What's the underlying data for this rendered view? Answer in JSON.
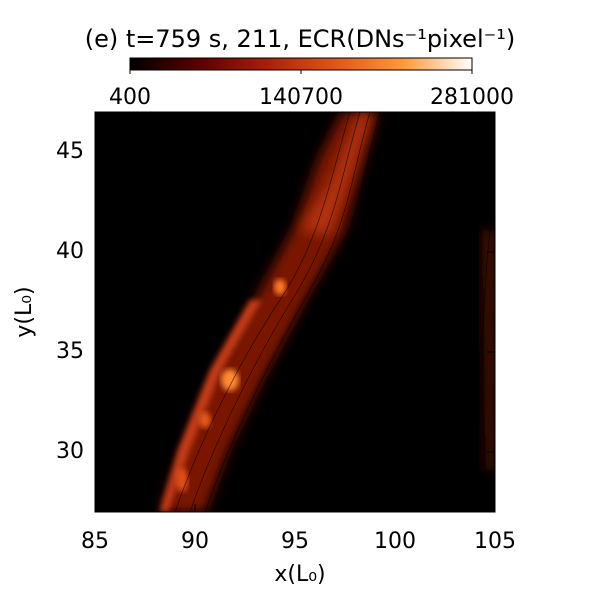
{
  "chart_data": {
    "type": "heatmap",
    "title": "(e) t=759 s, 211, ECR(DNs⁻¹pixel⁻¹)",
    "xlabel": "x(L₀)",
    "ylabel": "y(L₀)",
    "xlim": [
      85,
      105
    ],
    "xticks": [
      85,
      90,
      95,
      100,
      105
    ],
    "ylim": [
      27,
      47
    ],
    "yticks": [
      30,
      35,
      40,
      45
    ],
    "colorbar": {
      "lim": [
        400,
        281000
      ],
      "ticks": [
        400,
        140700,
        281000
      ],
      "colors": [
        "#000000",
        "#5a0000",
        "#a8200a",
        "#e0561a",
        "#ff9a3a",
        "#ffffff"
      ]
    }
  }
}
